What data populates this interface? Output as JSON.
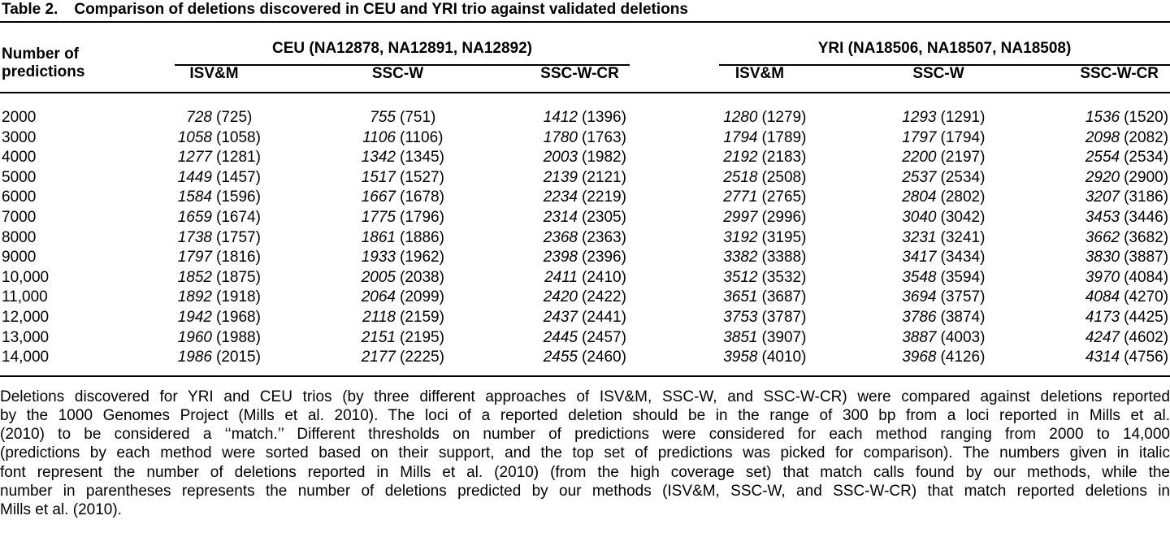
{
  "colors": {
    "text": "#000000",
    "rule": "#000000",
    "background": "#ffffff"
  },
  "title": {
    "label": "Table 2.",
    "text": "Comparison of deletions discovered in CEU and YRI trio against validated deletions"
  },
  "table": {
    "row_header": "Number of predictions",
    "groups": [
      {
        "label": "CEU (NA12878, NA12891, NA12892)",
        "methods": [
          "ISV&M",
          "SSC-W",
          "SSC-W-CR"
        ]
      },
      {
        "label": "YRI (NA18506, NA18507, NA18508)",
        "methods": [
          "ISV&M",
          "SSC-W",
          "SSC-W-CR"
        ]
      }
    ],
    "rows": [
      {
        "predictions": "2000",
        "cells": [
          [
            "728",
            "(725)"
          ],
          [
            "755",
            "(751)"
          ],
          [
            "1412",
            "(1396)"
          ],
          [
            "1280",
            "(1279)"
          ],
          [
            "1293",
            "(1291)"
          ],
          [
            "1536",
            "(1520)"
          ]
        ]
      },
      {
        "predictions": "3000",
        "cells": [
          [
            "1058",
            "(1058)"
          ],
          [
            "1106",
            "(1106)"
          ],
          [
            "1780",
            "(1763)"
          ],
          [
            "1794",
            "(1789)"
          ],
          [
            "1797",
            "(1794)"
          ],
          [
            "2098",
            "(2082)"
          ]
        ]
      },
      {
        "predictions": "4000",
        "cells": [
          [
            "1277",
            "(1281)"
          ],
          [
            "1342",
            "(1345)"
          ],
          [
            "2003",
            "(1982)"
          ],
          [
            "2192",
            "(2183)"
          ],
          [
            "2200",
            "(2197)"
          ],
          [
            "2554",
            "(2534)"
          ]
        ]
      },
      {
        "predictions": "5000",
        "cells": [
          [
            "1449",
            "(1457)"
          ],
          [
            "1517",
            "(1527)"
          ],
          [
            "2139",
            "(2121)"
          ],
          [
            "2518",
            "(2508)"
          ],
          [
            "2537",
            "(2534)"
          ],
          [
            "2920",
            "(2900)"
          ]
        ]
      },
      {
        "predictions": "6000",
        "cells": [
          [
            "1584",
            "(1596)"
          ],
          [
            "1667",
            "(1678)"
          ],
          [
            "2234",
            "(2219)"
          ],
          [
            "2771",
            "(2765)"
          ],
          [
            "2804",
            "(2802)"
          ],
          [
            "3207",
            "(3186)"
          ]
        ]
      },
      {
        "predictions": "7000",
        "cells": [
          [
            "1659",
            "(1674)"
          ],
          [
            "1775",
            "(1796)"
          ],
          [
            "2314",
            "(2305)"
          ],
          [
            "2997",
            "(2996)"
          ],
          [
            "3040",
            "(3042)"
          ],
          [
            "3453",
            "(3446)"
          ]
        ]
      },
      {
        "predictions": "8000",
        "cells": [
          [
            "1738",
            "(1757)"
          ],
          [
            "1861",
            "(1886)"
          ],
          [
            "2368",
            "(2363)"
          ],
          [
            "3192",
            "(3195)"
          ],
          [
            "3231",
            "(3241)"
          ],
          [
            "3662",
            "(3682)"
          ]
        ]
      },
      {
        "predictions": "9000",
        "cells": [
          [
            "1797",
            "(1816)"
          ],
          [
            "1933",
            "(1962)"
          ],
          [
            "2398",
            "(2396)"
          ],
          [
            "3382",
            "(3388)"
          ],
          [
            "3417",
            "(3434)"
          ],
          [
            "3830",
            "(3887)"
          ]
        ]
      },
      {
        "predictions": "10,000",
        "cells": [
          [
            "1852",
            "(1875)"
          ],
          [
            "2005",
            "(2038)"
          ],
          [
            "2411",
            "(2410)"
          ],
          [
            "3512",
            "(3532)"
          ],
          [
            "3548",
            "(3594)"
          ],
          [
            "3970",
            "(4084)"
          ]
        ]
      },
      {
        "predictions": "11,000",
        "cells": [
          [
            "1892",
            "(1918)"
          ],
          [
            "2064",
            "(2099)"
          ],
          [
            "2420",
            "(2422)"
          ],
          [
            "3651",
            "(3687)"
          ],
          [
            "3694",
            "(3757)"
          ],
          [
            "4084",
            "(4270)"
          ]
        ]
      },
      {
        "predictions": "12,000",
        "cells": [
          [
            "1942",
            "(1968)"
          ],
          [
            "2118",
            "(2159)"
          ],
          [
            "2437",
            "(2441)"
          ],
          [
            "3753",
            "(3787)"
          ],
          [
            "3786",
            "(3874)"
          ],
          [
            "4173",
            "(4425)"
          ]
        ]
      },
      {
        "predictions": "13,000",
        "cells": [
          [
            "1960",
            "(1988)"
          ],
          [
            "2151",
            "(2195)"
          ],
          [
            "2445",
            "(2457)"
          ],
          [
            "3851",
            "(3907)"
          ],
          [
            "3887",
            "(4003)"
          ],
          [
            "4247",
            "(4602)"
          ]
        ]
      },
      {
        "predictions": "14,000",
        "cells": [
          [
            "1986",
            "(2015)"
          ],
          [
            "2177",
            "(2225)"
          ],
          [
            "2455",
            "(2460)"
          ],
          [
            "3958",
            "(4010)"
          ],
          [
            "3968",
            "(4126)"
          ],
          [
            "4314",
            "(4756)"
          ]
        ]
      }
    ]
  },
  "footnote": {
    "lines": [
      "Deletions discovered for YRI and CEU trios (by three different approaches of ISV&M, SSC-W, and SSC-W-CR) were compared against deletions reported",
      "by the 1000 Genomes Project (Mills et al. 2010). The loci of a reported deletion should be in the range of 300 bp from a loci reported in Mills et al.",
      "(2010) to be considered a ‘‘match.’’ Different thresholds on number of predictions were considered for each method ranging from 2000 to 14,000",
      "(predictions by each method were sorted based on their support, and the top set of predictions was picked for comparison). The numbers given in italic",
      "font represent the number of deletions reported in Mills et al. (2010) (from the high coverage set) that match calls found by our methods, while the",
      "number in parentheses represents the number of deletions predicted by our methods (ISV&M, SSC-W, and SSC-W-CR) that match reported deletions in",
      "Mills et al. (2010)."
    ]
  }
}
